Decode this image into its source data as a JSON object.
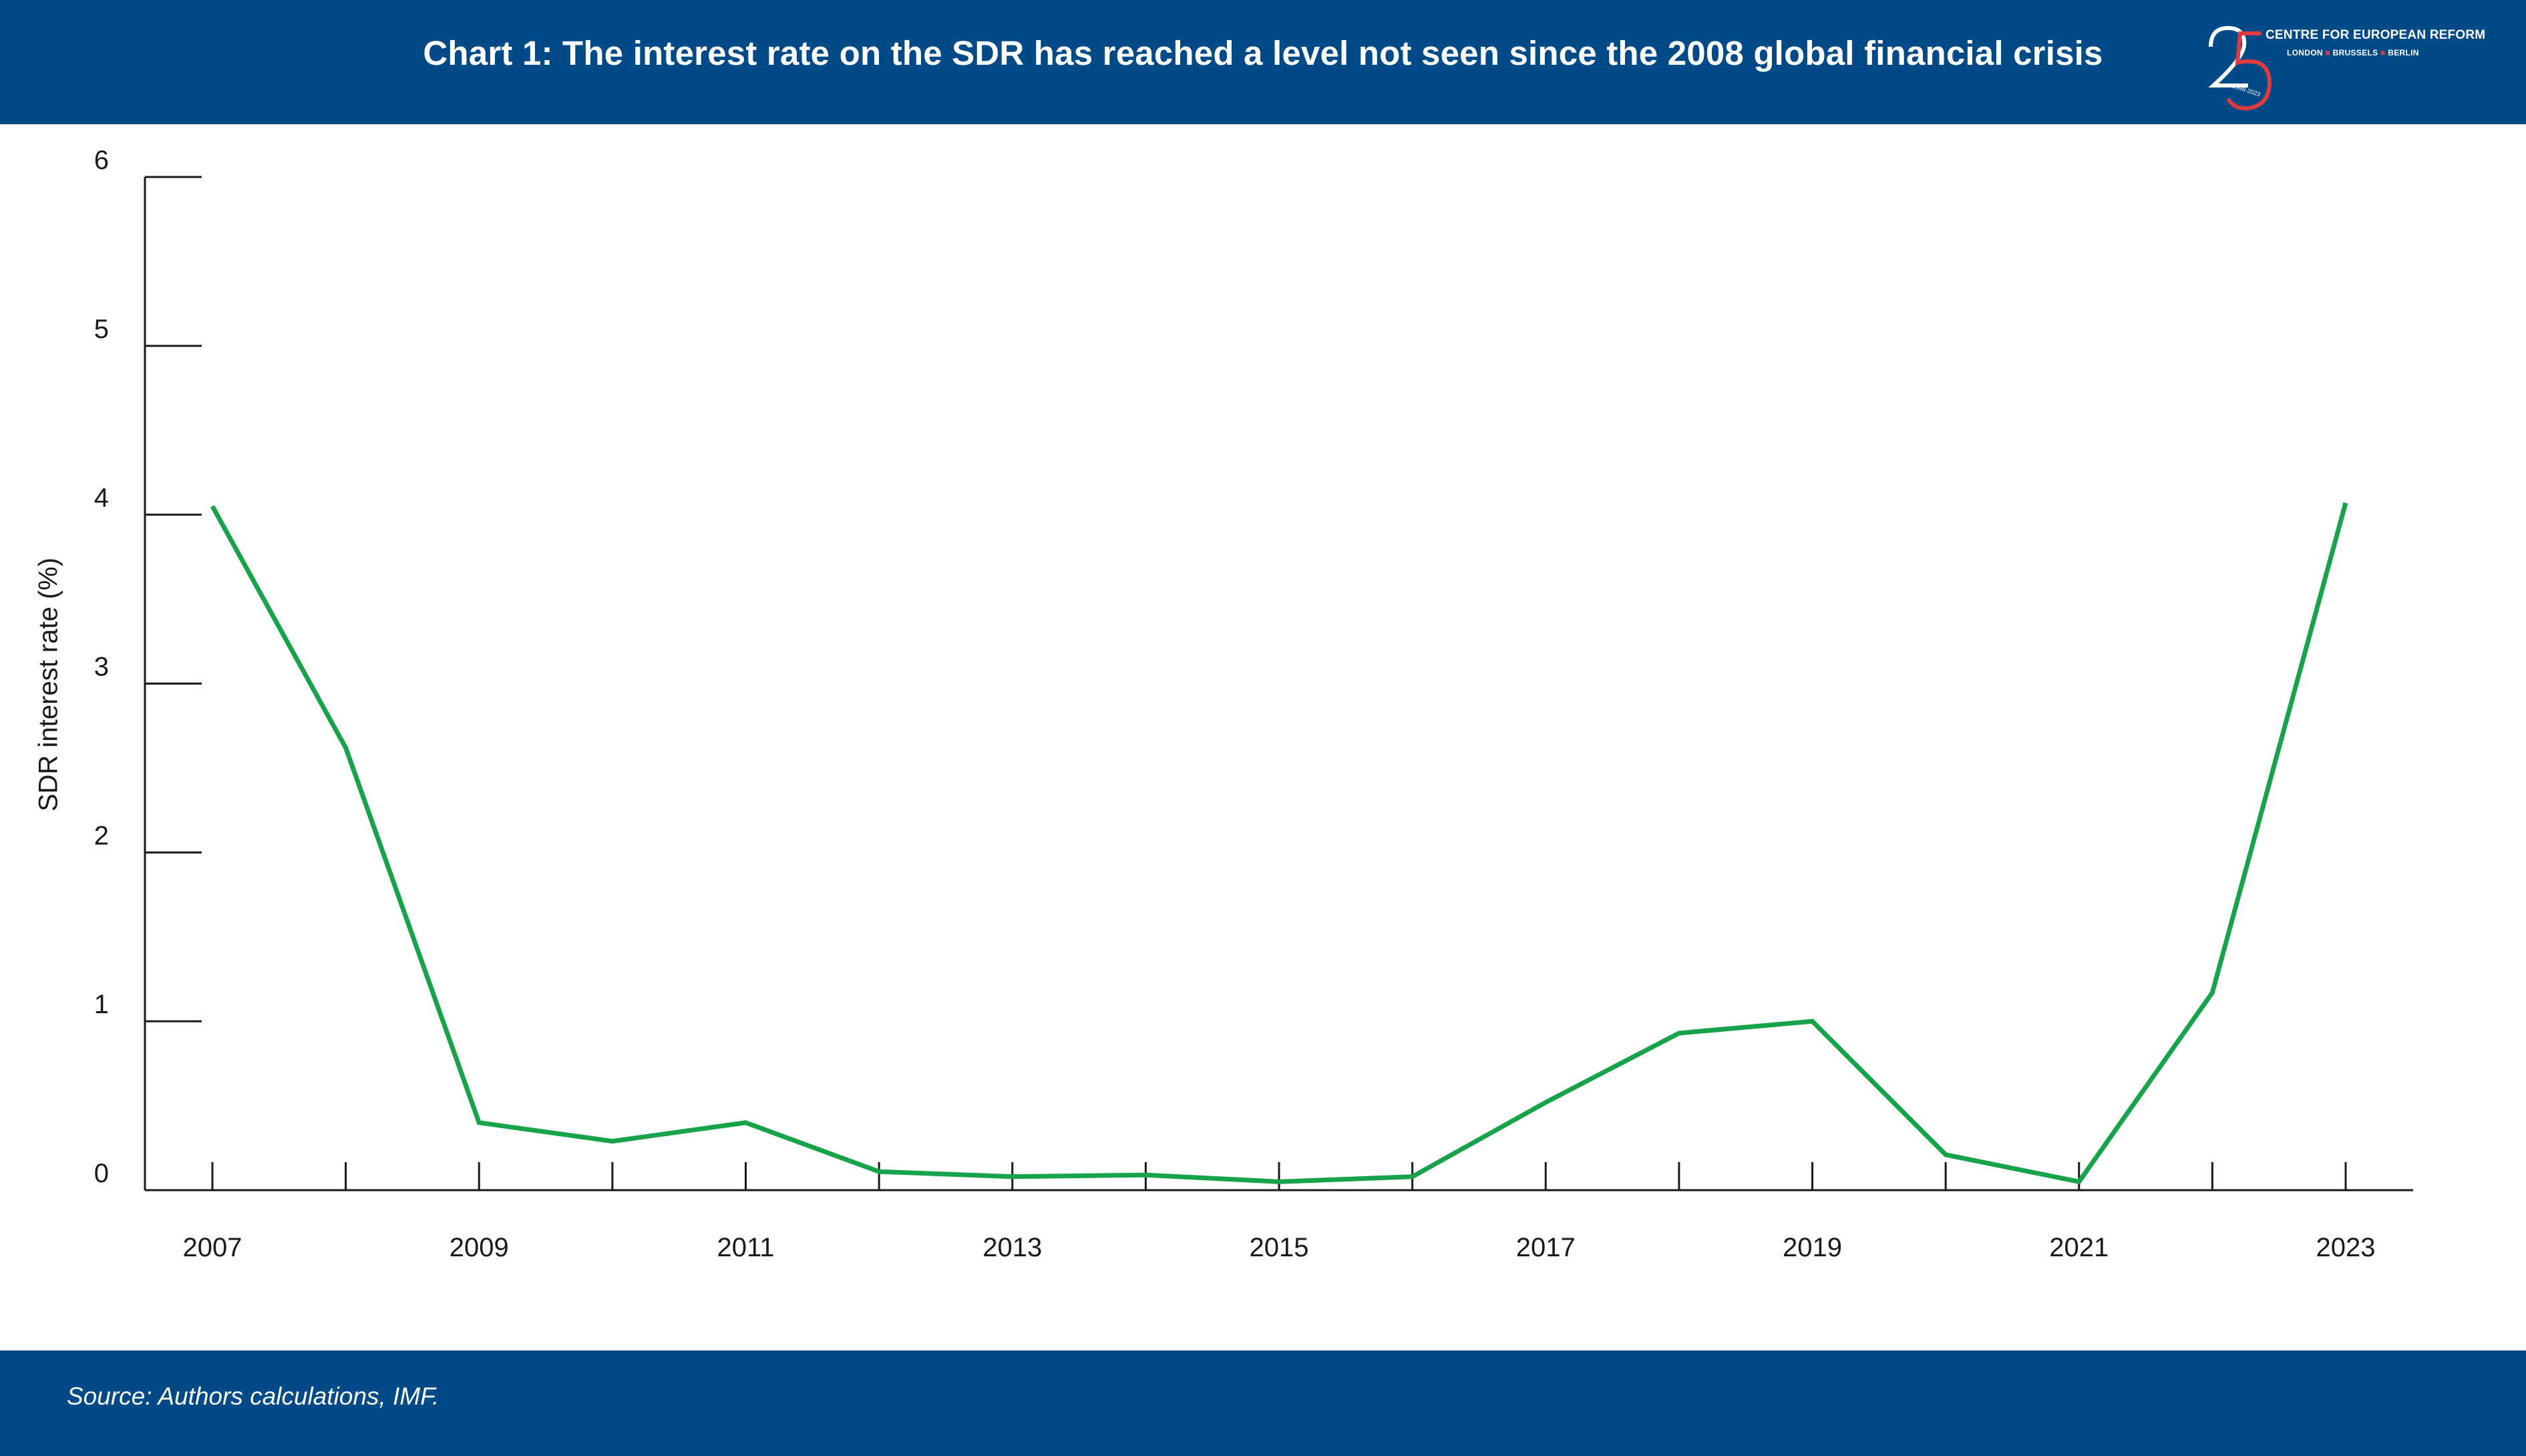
{
  "header": {
    "title": "Chart 1: The interest rate on the SDR has reached a level not seen since the 2008 global financial crisis",
    "background_color": "#004a87"
  },
  "logo": {
    "number": "25",
    "org_name": "CENTRE FOR EUROPEAN REFORM",
    "cities": [
      "LONDON",
      "BRUSSELS",
      "BERLIN"
    ],
    "years": "1998-2023",
    "accent_color": "#e03a3e"
  },
  "footer": {
    "source": "Source: Authors calculations, IMF."
  },
  "chart_data": {
    "type": "line",
    "title": "",
    "xlabel": "",
    "ylabel": "SDR interest rate (%)",
    "ylim": [
      0,
      6
    ],
    "yticks": [
      0,
      1,
      2,
      3,
      4,
      5,
      6
    ],
    "xlim": [
      2007,
      2023
    ],
    "xtick_labels": [
      "2007",
      "2009",
      "2011",
      "2013",
      "2015",
      "2017",
      "2019",
      "2021",
      "2023"
    ],
    "grid": false,
    "line_color": "#17a34a",
    "series": [
      {
        "x": [
          2007,
          2008,
          2009,
          2010,
          2011,
          2012,
          2013,
          2014,
          2015,
          2016,
          2017,
          2018,
          2019,
          2020,
          2021,
          2022,
          2023
        ],
        "values": [
          4.05,
          2.62,
          0.4,
          0.29,
          0.4,
          0.11,
          0.08,
          0.09,
          0.05,
          0.08,
          0.52,
          0.93,
          1.0,
          0.21,
          0.05,
          1.17,
          4.07
        ]
      }
    ]
  }
}
